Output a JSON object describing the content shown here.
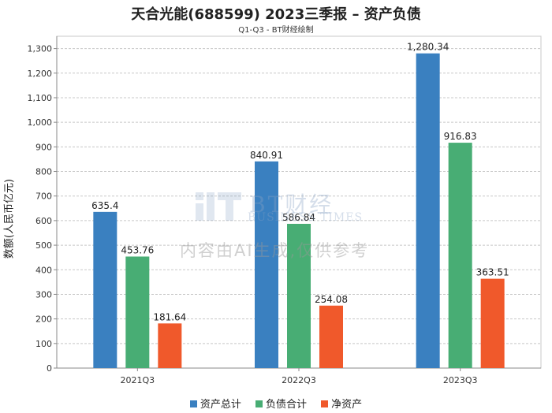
{
  "chart_data": {
    "type": "bar",
    "title": "天合光能(688599) 2023三季报 – 资产负债",
    "subtitle": "Q1-Q3 - BT财经绘制",
    "xlabel": "",
    "ylabel": "数额(人民币亿元)",
    "categories": [
      "2021Q3",
      "2022Q3",
      "2023Q3"
    ],
    "series": [
      {
        "name": "资产总计",
        "color": "#3a80c0",
        "values": [
          635.4,
          840.91,
          1280.34
        ],
        "labels": [
          "635.4",
          "840.91",
          "1,280.34"
        ]
      },
      {
        "name": "负债合计",
        "color": "#48ad74",
        "values": [
          453.76,
          586.84,
          916.83
        ],
        "labels": [
          "453.76",
          "586.84",
          "916.83"
        ]
      },
      {
        "name": "净资产",
        "color": "#f0592b",
        "values": [
          181.64,
          254.08,
          363.51
        ],
        "labels": [
          "181.64",
          "254.08",
          "363.51"
        ]
      }
    ],
    "ylim": [
      0,
      1350
    ],
    "yticks": [
      0,
      100,
      200,
      300,
      400,
      500,
      600,
      700,
      800,
      900,
      1000,
      1100,
      1200,
      1300
    ],
    "ytick_labels": [
      "0",
      "100",
      "200",
      "300",
      "400",
      "500",
      "600",
      "700",
      "800",
      "900",
      "1,000",
      "1,100",
      "1,200",
      "1,300"
    ],
    "grid": true,
    "legend_position": "bottom-center"
  },
  "watermark": {
    "brand": "BT财经",
    "brand_en": "BUSINESS TIMES",
    "note": "内容由AI生成,仅供参考"
  }
}
